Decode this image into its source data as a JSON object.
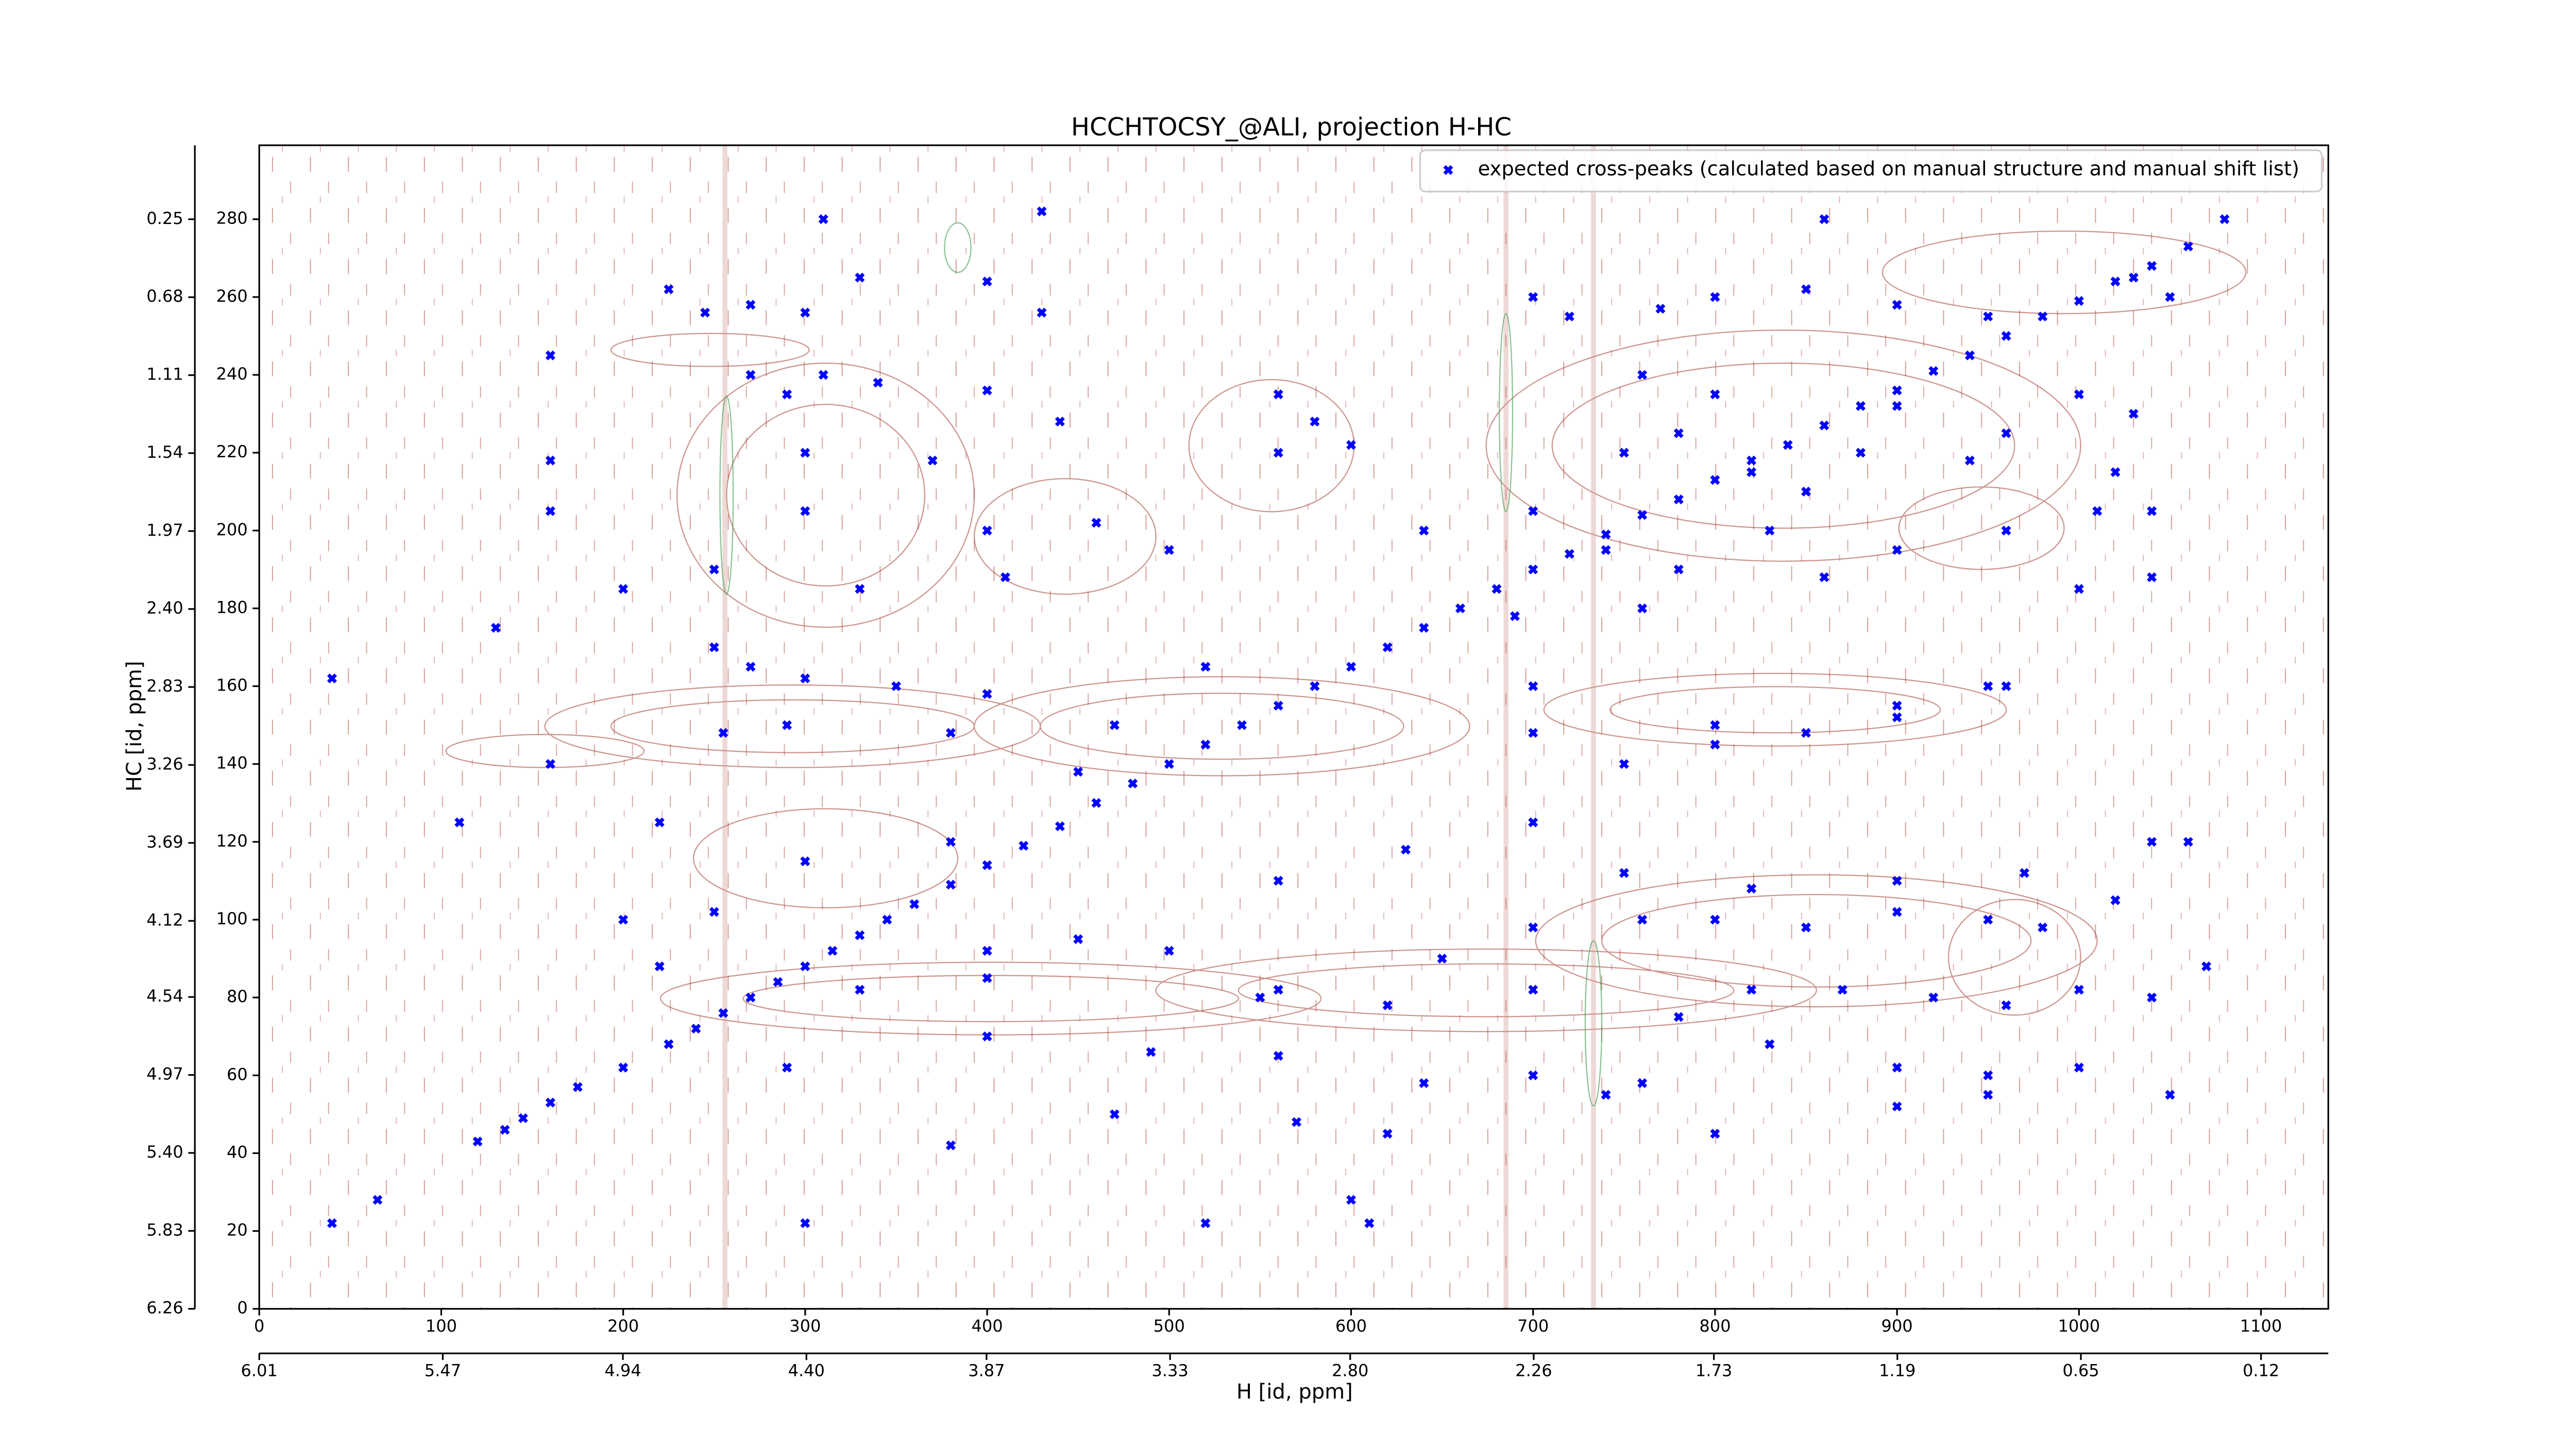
{
  "chart_data": {
    "type": "scatter",
    "title": "HCCHTOCSY_@ALI, projection H-HC",
    "xlabel": "H [id, ppm]",
    "ylabel": "HC [id, ppm]",
    "legend": "upper right",
    "series": [
      {
        "name": "expected cross-peaks (calculated based on manual structure and manual shift list)",
        "color": "#0000ff",
        "x": [
          40,
          65,
          120,
          135,
          145,
          160,
          175,
          200,
          225,
          240,
          255,
          270,
          285,
          300,
          315,
          330,
          345,
          360,
          380,
          400,
          420,
          440,
          460,
          480,
          500,
          520,
          540,
          560,
          580,
          600,
          620,
          640,
          660,
          680,
          700,
          720,
          740,
          760,
          780,
          800,
          820,
          840,
          860,
          880,
          900,
          920,
          940,
          960,
          980,
          1000,
          1020,
          1040,
          1060,
          310,
          430,
          860,
          1080,
          225,
          245,
          270,
          300,
          330,
          400,
          430,
          700,
          720,
          770,
          800,
          850,
          900,
          950,
          1030,
          1050,
          160,
          270,
          290,
          310,
          340,
          400,
          440,
          560,
          580,
          600,
          760,
          800,
          900,
          960,
          1000,
          1030,
          160,
          300,
          370,
          560,
          750,
          780,
          820,
          850,
          880,
          940,
          1020,
          160,
          300,
          400,
          460,
          640,
          700,
          740,
          780,
          830,
          900,
          960,
          1010,
          1040,
          200,
          250,
          330,
          410,
          500,
          690,
          760,
          860,
          1000,
          1040,
          130,
          250,
          270,
          300,
          350,
          400,
          520,
          700,
          800,
          900,
          950,
          40,
          160,
          255,
          290,
          380,
          450,
          470,
          700,
          750,
          800,
          850,
          900,
          960,
          110,
          220,
          300,
          380,
          560,
          630,
          700,
          750,
          820,
          900,
          970,
          1040,
          1060,
          200,
          250,
          400,
          450,
          550,
          650,
          700,
          760,
          800,
          850,
          900,
          950,
          980,
          1020,
          220,
          330,
          400,
          500,
          560,
          620,
          700,
          780,
          820,
          870,
          920,
          960,
          1000,
          1040,
          1070,
          290,
          400,
          490,
          560,
          640,
          700,
          760,
          830,
          900,
          950,
          1000,
          1050,
          380,
          470,
          570,
          620,
          740,
          800,
          900,
          950,
          300,
          520,
          600,
          610
        ],
        "values": [
          22,
          28,
          43,
          46,
          49,
          53,
          57,
          62,
          68,
          72,
          76,
          80,
          84,
          88,
          92,
          96,
          100,
          104,
          109,
          114,
          119,
          124,
          130,
          135,
          140,
          145,
          150,
          155,
          160,
          165,
          170,
          175,
          180,
          185,
          190,
          194,
          199,
          204,
          208,
          213,
          218,
          222,
          227,
          232,
          236,
          241,
          245,
          250,
          255,
          259,
          264,
          268,
          273,
          280,
          282,
          280,
          280,
          262,
          256,
          258,
          256,
          265,
          264,
          256,
          260,
          255,
          257,
          260,
          262,
          258,
          255,
          265,
          260,
          245,
          240,
          235,
          240,
          238,
          236,
          228,
          235,
          228,
          222,
          240,
          235,
          232,
          225,
          235,
          230,
          218,
          220,
          218,
          220,
          220,
          225,
          215,
          210,
          220,
          218,
          215,
          205,
          205,
          200,
          202,
          200,
          205,
          195,
          190,
          200,
          195,
          200,
          205,
          205,
          185,
          190,
          185,
          188,
          195,
          178,
          180,
          188,
          185,
          188,
          175,
          170,
          165,
          162,
          160,
          158,
          165,
          160,
          150,
          155,
          160,
          162,
          140,
          148,
          150,
          148,
          138,
          150,
          148,
          140,
          145,
          148,
          152,
          160,
          125,
          125,
          115,
          120,
          110,
          118,
          125,
          112,
          108,
          110,
          112,
          120,
          120,
          100,
          102,
          92,
          95,
          80,
          90,
          98,
          100,
          100,
          98,
          102,
          100,
          98,
          105,
          88,
          82,
          85,
          92,
          82,
          78,
          82,
          75,
          82,
          82,
          80,
          78,
          82,
          80,
          88,
          62,
          70,
          66,
          65,
          58,
          60,
          58,
          68,
          62,
          60,
          62,
          55,
          42,
          50,
          48,
          45,
          55,
          45,
          52,
          55,
          22,
          22,
          28,
          22
        ]
      }
    ],
    "xlim": [
      0,
      1137
    ],
    "xticks": [
      0,
      100,
      200,
      300,
      400,
      500,
      600,
      700,
      800,
      900,
      1000,
      1100
    ],
    "ylim": [
      0,
      299
    ],
    "yticks": [
      0,
      20,
      40,
      60,
      80,
      100,
      120,
      140,
      160,
      180,
      200,
      220,
      240,
      260,
      280
    ],
    "x2lim": [
      6.01,
      -0.078
    ],
    "x2ticks": [
      6.01,
      5.47,
      4.94,
      {
        "value": 4.4,
        "label": "4.40"
      },
      3.87,
      3.33,
      {
        "value": 2.8,
        "label": "2.80"
      },
      2.26,
      1.73,
      1.19,
      0.65,
      0.12
    ],
    "y2lim": [
      6.26,
      -0.158
    ],
    "y2ticks": [
      6.26,
      5.83,
      {
        "value": 5.4,
        "label": "5.40"
      },
      4.97,
      4.54,
      4.12,
      3.69,
      3.26,
      2.83,
      {
        "value": 2.4,
        "label": "2.40"
      },
      1.97,
      1.54,
      1.11,
      0.68,
      0.25
    ]
  }
}
